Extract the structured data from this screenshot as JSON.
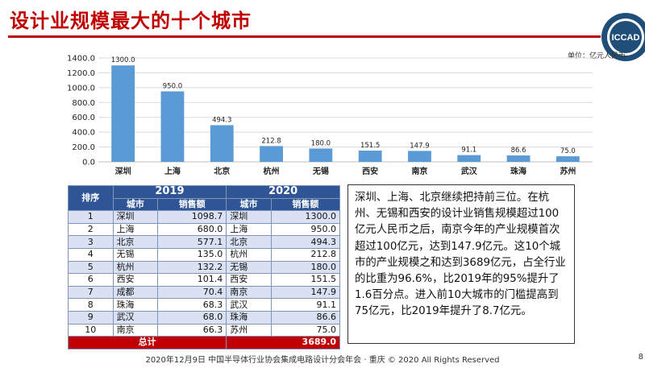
{
  "title": "设计业规模最大的十个城市",
  "unit": "单位：亿元人民币",
  "logo_text": "ICCAD",
  "chart_data": {
    "type": "bar",
    "categories": [
      "深圳",
      "上海",
      "北京",
      "杭州",
      "无锡",
      "西安",
      "南京",
      "武汉",
      "珠海",
      "苏州"
    ],
    "values": [
      1300.0,
      950.0,
      494.3,
      212.8,
      180.0,
      151.5,
      147.9,
      91.1,
      86.6,
      75.0
    ],
    "value_labels": [
      "1300.0",
      "950.0",
      "494.3",
      "212.8",
      "180.0",
      "151.5",
      "147.9",
      "91.1",
      "86.6",
      "75.0"
    ],
    "y_ticks": [
      "0.0",
      "200.0",
      "400.0",
      "600.0",
      "800.0",
      "1000.0",
      "1200.0",
      "1400.0"
    ],
    "ylim": [
      0,
      1400
    ],
    "grid": true,
    "bar_color": "#5b9bd5"
  },
  "table": {
    "rank_header": "排序",
    "year1": "2019",
    "year2": "2020",
    "city_header": "城市",
    "sales_header": "销售额",
    "rows": [
      {
        "rank": "1",
        "c1": "深圳",
        "v1": "1098.7",
        "c2": "深圳",
        "v2": "1300.0"
      },
      {
        "rank": "2",
        "c1": "上海",
        "v1": "680.0",
        "c2": "上海",
        "v2": "950.0"
      },
      {
        "rank": "3",
        "c1": "北京",
        "v1": "577.1",
        "c2": "北京",
        "v2": "494.3"
      },
      {
        "rank": "4",
        "c1": "无锡",
        "v1": "135.0",
        "c2": "杭州",
        "v2": "212.8"
      },
      {
        "rank": "5",
        "c1": "杭州",
        "v1": "132.2",
        "c2": "无锡",
        "v2": "180.0"
      },
      {
        "rank": "6",
        "c1": "西安",
        "v1": "101.4",
        "c2": "西安",
        "v2": "151.5"
      },
      {
        "rank": "7",
        "c1": "成都",
        "v1": "70.4",
        "c2": "南京",
        "v2": "147.9"
      },
      {
        "rank": "8",
        "c1": "珠海",
        "v1": "68.3",
        "c2": "武汉",
        "v2": "91.1"
      },
      {
        "rank": "9",
        "c1": "武汉",
        "v1": "68.0",
        "c2": "珠海",
        "v2": "86.6"
      },
      {
        "rank": "10",
        "c1": "南京",
        "v1": "66.3",
        "c2": "苏州",
        "v2": "75.0"
      }
    ],
    "total_label": "总计",
    "total_value": "3689.0"
  },
  "summary": "深圳、上海、北京继续把持前三位。在杭州、无锡和西安的设计业销售规模超过100亿元人民币之后，南京今年的产业规模首次超过100亿元，达到147.9亿元。这10个城市的产业规模之和达到3689亿元，占全行业的比重为96.6%，比2019年的95%提升了1.6百分点。进入前10大城市的门槛提高到75亿元，比2019年提升了8.7亿元。",
  "footer": "2020年12月9日  中国半导体行业协会集成电路设计分会年会 · 重庆 © 2020 All Rights Reserved",
  "page_number": "8"
}
